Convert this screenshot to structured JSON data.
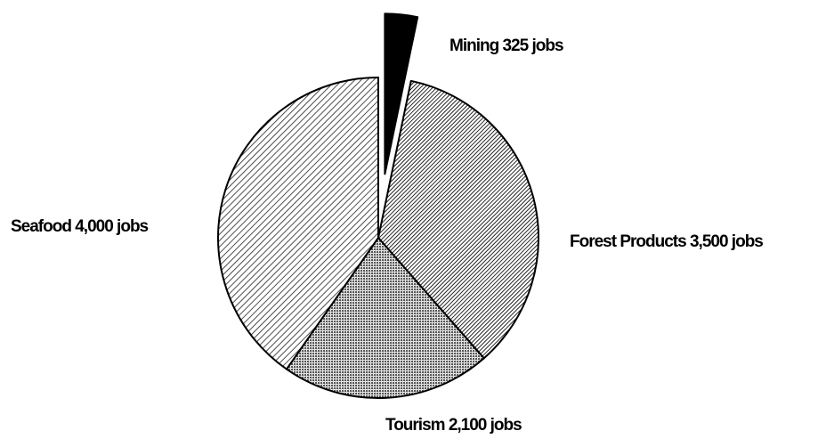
{
  "chart_data": {
    "type": "pie",
    "categories": [
      "Mining",
      "Forest Products",
      "Tourism",
      "Seafood"
    ],
    "values": [
      325,
      3500,
      2100,
      4000
    ],
    "value_labels": [
      "325 jobs",
      "3,500 jobs",
      "2,100 jobs",
      "4,000 jobs"
    ],
    "colors": [
      "#000000",
      "#1a1a1a",
      "#555555",
      "#222222"
    ],
    "patterns": [
      "solid",
      "dense-hatch",
      "dots",
      "hatch"
    ],
    "exploded": [
      true,
      false,
      false,
      false
    ]
  }
}
